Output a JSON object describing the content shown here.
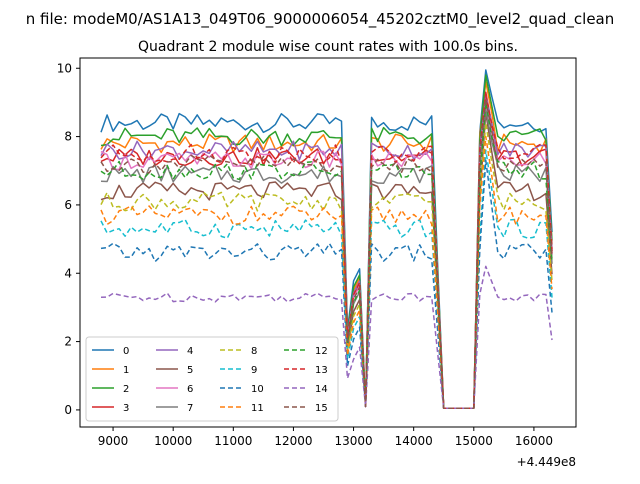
{
  "chart_data": {
    "type": "line",
    "suptitle": "n file: modeM0/AS1A13_049T06_9000006054_45202cztM0_level2_quad_clean",
    "title": "Quadrant 2 module wise count rates with 100.0s bins.",
    "xlabel": "",
    "ylabel": "",
    "offset_label": "+4.449e8",
    "xlim": [
      8450,
      16700
    ],
    "ylim": [
      -0.5,
      10.3
    ],
    "xticks": [
      9000,
      10000,
      11000,
      12000,
      13000,
      14000,
      15000,
      16000
    ],
    "xtick_labels": [
      "9000",
      "10000",
      "11000",
      "12000",
      "13000",
      "14000",
      "15000",
      "16000"
    ],
    "yticks": [
      0,
      2,
      4,
      6,
      8,
      10
    ],
    "ytick_labels": [
      "0",
      "2",
      "4",
      "6",
      "8",
      "10"
    ],
    "x_start": 8800,
    "x_step": 100,
    "n_points": 76,
    "legend_position": "lower-left",
    "series": [
      {
        "name": "0",
        "color": "#1f77b4",
        "dash": "solid",
        "level": 8.4,
        "peak": 9.95
      },
      {
        "name": "1",
        "color": "#ff7f0e",
        "dash": "solid",
        "level": 7.8,
        "peak": 9.6
      },
      {
        "name": "2",
        "color": "#2ca02c",
        "dash": "solid",
        "level": 8.0,
        "peak": 9.8
      },
      {
        "name": "3",
        "color": "#d62728",
        "dash": "solid",
        "level": 7.4,
        "peak": 9.3
      },
      {
        "name": "4",
        "color": "#9467bd",
        "dash": "solid",
        "level": 7.6,
        "peak": 9.2
      },
      {
        "name": "5",
        "color": "#8c564b",
        "dash": "solid",
        "level": 6.4,
        "peak": 8.7
      },
      {
        "name": "6",
        "color": "#e377c2",
        "dash": "solid",
        "level": 7.3,
        "peak": 9.0
      },
      {
        "name": "7",
        "color": "#7f7f7f",
        "dash": "solid",
        "level": 6.9,
        "peak": 8.8
      },
      {
        "name": "8",
        "color": "#bcbd22",
        "dash": "dashed",
        "level": 6.1,
        "peak": 8.4
      },
      {
        "name": "9",
        "color": "#17becf",
        "dash": "dashed",
        "level": 5.3,
        "peak": 7.6
      },
      {
        "name": "10",
        "color": "#1f77b4",
        "dash": "dashed",
        "level": 4.6,
        "peak": 7.3
      },
      {
        "name": "11",
        "color": "#ff7f0e",
        "dash": "dashed",
        "level": 5.7,
        "peak": 8.0
      },
      {
        "name": "12",
        "color": "#2ca02c",
        "dash": "dashed",
        "level": 7.0,
        "peak": 9.0
      },
      {
        "name": "13",
        "color": "#d62728",
        "dash": "dashed",
        "level": 7.5,
        "peak": 9.2
      },
      {
        "name": "14",
        "color": "#9467bd",
        "dash": "dashed",
        "level": 3.3,
        "peak": 4.2
      },
      {
        "name": "15",
        "color": "#8c564b",
        "dash": "dashed",
        "level": 7.2,
        "peak": 9.1
      }
    ]
  }
}
